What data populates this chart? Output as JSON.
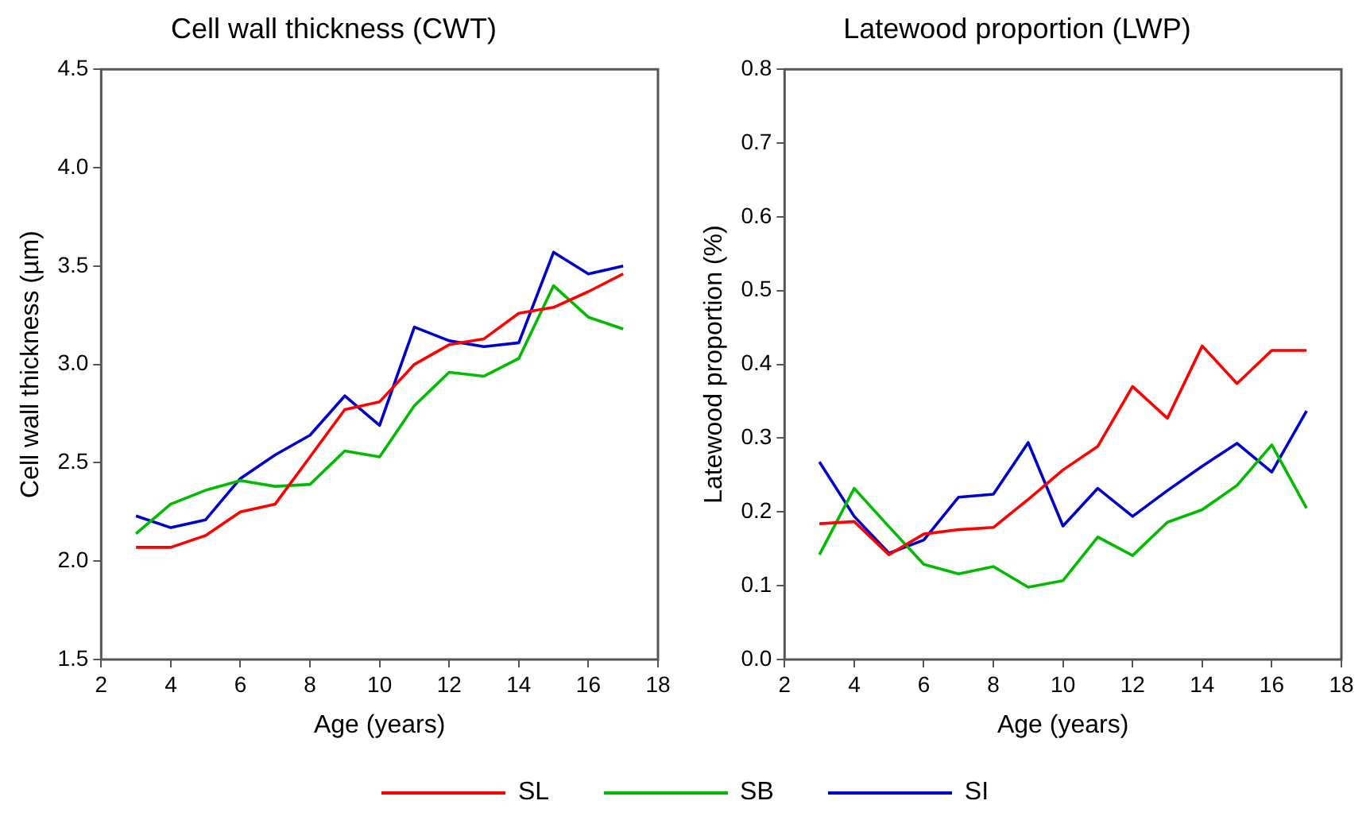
{
  "chart_data": [
    {
      "type": "line",
      "title": "Cell wall thickness (CWT)",
      "xlabel": "Age (years)",
      "ylabel": "Cell wall thickness (µm)",
      "x": [
        3,
        4,
        5,
        6,
        7,
        8,
        9,
        10,
        11,
        12,
        13,
        14,
        15,
        16,
        17
      ],
      "xlim": [
        2,
        18
      ],
      "xticks": [
        2,
        4,
        6,
        8,
        10,
        12,
        14,
        16,
        18
      ],
      "ylim": [
        1.5,
        4.5
      ],
      "yticks": [
        1.5,
        {
          "value": 2,
          "label": "2.0"
        },
        2.5,
        {
          "value": 3,
          "label": "3.0"
        },
        3.5,
        {
          "value": 4,
          "label": "4.0"
        },
        4.5
      ],
      "grid": false,
      "legend": "bottom",
      "marker": "none",
      "line_style": "solid",
      "series": [
        {
          "name": "SL",
          "color": "#ff0000",
          "values": [
            2.07,
            2.07,
            2.13,
            2.25,
            2.29,
            2.53,
            2.77,
            2.81,
            3.0,
            3.1,
            3.13,
            3.26,
            3.29,
            3.37,
            3.46
          ]
        },
        {
          "name": "SB",
          "color": "#00bb00",
          "values": [
            2.14,
            2.29,
            2.36,
            2.41,
            2.38,
            2.39,
            2.56,
            2.53,
            2.79,
            2.96,
            2.94,
            3.03,
            3.4,
            3.24,
            3.18
          ]
        },
        {
          "name": "SI",
          "color": "#0000cc",
          "values": [
            2.23,
            2.17,
            2.21,
            2.42,
            2.54,
            2.64,
            2.84,
            2.69,
            3.19,
            3.12,
            3.09,
            3.11,
            3.57,
            3.46,
            3.5
          ]
        }
      ]
    },
    {
      "type": "line",
      "title": "Latewood proportion (LWP)",
      "xlabel": "Age (years)",
      "ylabel": "Latewood proportion (%)",
      "x": [
        3,
        4,
        5,
        6,
        7,
        8,
        9,
        10,
        11,
        12,
        13,
        14,
        15,
        16,
        17
      ],
      "xlim": [
        2,
        18
      ],
      "xticks": [
        2,
        4,
        6,
        8,
        10,
        12,
        14,
        16,
        18
      ],
      "ylim": [
        0,
        0.8
      ],
      "yticks": [
        {
          "value": 0,
          "label": "0.0"
        },
        0.1,
        0.2,
        0.3,
        0.4,
        0.5,
        0.6,
        0.7,
        0.8
      ],
      "grid": false,
      "legend": "bottom",
      "marker": "none",
      "line_style": "solid",
      "series": [
        {
          "name": "SL",
          "color": "#ff0000",
          "values": [
            0.184,
            0.187,
            0.142,
            0.17,
            0.176,
            0.179,
            0.217,
            0.257,
            0.289,
            0.37,
            0.327,
            0.425,
            0.374,
            0.419,
            0.419
          ]
        },
        {
          "name": "SB",
          "color": "#00bb00",
          "values": [
            0.142,
            0.232,
            0.18,
            0.129,
            0.116,
            0.126,
            0.098,
            0.107,
            0.166,
            0.141,
            0.186,
            0.203,
            0.236,
            0.291,
            0.205
          ]
        },
        {
          "name": "SI",
          "color": "#0000cc",
          "values": [
            0.268,
            0.194,
            0.144,
            0.162,
            0.22,
            0.224,
            0.294,
            0.181,
            0.232,
            0.194,
            0.229,
            0.262,
            0.293,
            0.254,
            0.337
          ]
        }
      ]
    }
  ]
}
